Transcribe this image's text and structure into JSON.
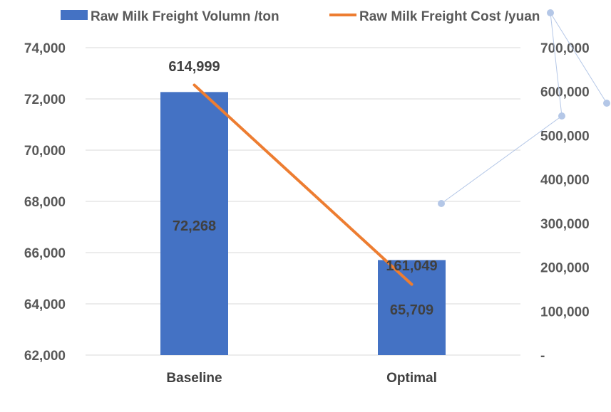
{
  "chart_data": {
    "type": "bar",
    "categories": [
      "Baseline",
      "Optimal"
    ],
    "series": [
      {
        "name": "Raw Milk Freight Volumn /ton",
        "type": "bar",
        "axis": "left",
        "color": "#4472C4",
        "values": [
          72268,
          65709
        ],
        "data_labels": [
          "72,268",
          "65,709"
        ]
      },
      {
        "name": "Raw Milk Freight Cost /yuan",
        "type": "line",
        "axis": "right",
        "color": "#ED7D31",
        "values": [
          614999,
          161049
        ],
        "data_labels": [
          "614,999",
          "161,049"
        ]
      }
    ],
    "y_left": {
      "min": 62000,
      "max": 74000,
      "ticks": [
        62000,
        64000,
        66000,
        68000,
        70000,
        72000,
        74000
      ],
      "tick_labels": [
        "62,000",
        "64,000",
        "66,000",
        "68,000",
        "70,000",
        "72,000",
        "74,000"
      ]
    },
    "y_right": {
      "min": 0,
      "max": 700000,
      "ticks": [
        0,
        100000,
        200000,
        300000,
        400000,
        500000,
        600000,
        700000
      ],
      "tick_labels": [
        "-",
        "100,000",
        "200,000",
        "300,000",
        "400,000",
        "500,000",
        "600,000",
        "700,000"
      ]
    },
    "grid": true,
    "legend": "top",
    "title": "",
    "xlabel": "",
    "ylabel": ""
  }
}
